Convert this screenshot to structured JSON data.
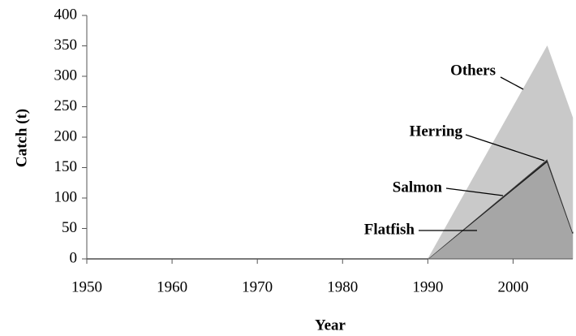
{
  "chart_data": {
    "type": "stacked_area",
    "x_label": "Year",
    "y_label": "Catch (t)",
    "x": [
      1950,
      1990,
      2004,
      2007
    ],
    "series": [
      {
        "name": "Flatfish",
        "color": "#a6a6a6",
        "values": [
          0,
          0,
          160,
          42
        ]
      },
      {
        "name": "Salmon",
        "color": "#111111",
        "values": [
          0,
          0,
          2,
          1
        ]
      },
      {
        "name": "Herring",
        "color": "#3a3a3a",
        "values": [
          0,
          0,
          2,
          1
        ]
      },
      {
        "name": "Others",
        "color": "#c9c9c9",
        "values": [
          0,
          0,
          186,
          188
        ]
      }
    ],
    "xlim": [
      1950,
      2007
    ],
    "xticks": [
      1950,
      1960,
      1970,
      1980,
      1990,
      2000
    ],
    "ylim": [
      0,
      400
    ],
    "yticks": [
      0,
      50,
      100,
      150,
      200,
      250,
      300,
      350,
      400
    ],
    "grid": false
  }
}
